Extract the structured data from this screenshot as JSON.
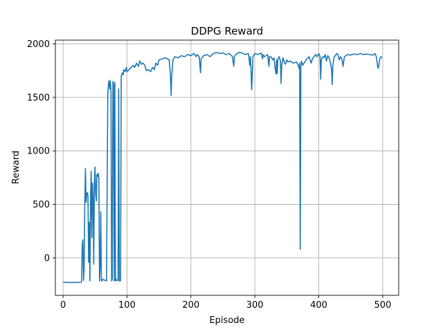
{
  "chart_data": {
    "type": "line",
    "title": "DDPG Reward",
    "xlabel": "Episode",
    "ylabel": "Reward",
    "xlim": [
      -12,
      525
    ],
    "ylim": [
      -350,
      2035
    ],
    "xticks": [
      0,
      100,
      200,
      300,
      400,
      500
    ],
    "yticks": [
      0,
      500,
      1000,
      1500,
      2000
    ],
    "grid": true,
    "series": [
      {
        "name": "Reward",
        "color": "#1f77b4",
        "points": [
          [
            0,
            -228
          ],
          [
            10,
            -230
          ],
          [
            20,
            -230
          ],
          [
            28,
            -228
          ],
          [
            29,
            -220
          ],
          [
            30,
            120
          ],
          [
            31,
            170
          ],
          [
            32,
            -210
          ],
          [
            33,
            -100
          ],
          [
            34,
            500
          ],
          [
            35,
            835
          ],
          [
            36,
            520
          ],
          [
            37,
            600
          ],
          [
            38,
            610
          ],
          [
            39,
            580
          ],
          [
            40,
            -40
          ],
          [
            41,
            330
          ],
          [
            42,
            -215
          ],
          [
            43,
            520
          ],
          [
            44,
            810
          ],
          [
            45,
            190
          ],
          [
            46,
            700
          ],
          [
            47,
            540
          ],
          [
            48,
            -60
          ],
          [
            49,
            700
          ],
          [
            50,
            850
          ],
          [
            51,
            600
          ],
          [
            52,
            530
          ],
          [
            53,
            780
          ],
          [
            54,
            760
          ],
          [
            55,
            790
          ],
          [
            56,
            750
          ],
          [
            57,
            -215
          ],
          [
            58,
            -100
          ],
          [
            59,
            430
          ],
          [
            60,
            -215
          ],
          [
            61,
            -215
          ],
          [
            62,
            -200
          ],
          [
            64,
            -205
          ],
          [
            66,
            -210
          ],
          [
            68,
            -215
          ],
          [
            70,
            1530
          ],
          [
            71,
            1620
          ],
          [
            72,
            1660
          ],
          [
            73,
            1580
          ],
          [
            74,
            1650
          ],
          [
            75,
            1540
          ],
          [
            76,
            -215
          ],
          [
            77,
            -200
          ],
          [
            78,
            1650
          ],
          [
            79,
            1620
          ],
          [
            80,
            -215
          ],
          [
            81,
            1640
          ],
          [
            82,
            -215
          ],
          [
            83,
            -200
          ],
          [
            84,
            -210
          ],
          [
            86,
            -210
          ],
          [
            87,
            1580
          ],
          [
            88,
            -215
          ],
          [
            89,
            -215
          ],
          [
            90,
            -210
          ],
          [
            91,
            1700
          ],
          [
            92,
            1720
          ],
          [
            93,
            1730
          ],
          [
            94,
            1710
          ],
          [
            95,
            1760
          ],
          [
            97,
            1740
          ],
          [
            99,
            1780
          ],
          [
            100,
            1740
          ],
          [
            105,
            1770
          ],
          [
            110,
            1800
          ],
          [
            112,
            1780
          ],
          [
            115,
            1820
          ],
          [
            118,
            1790
          ],
          [
            120,
            1840
          ],
          [
            123,
            1810
          ],
          [
            125,
            1820
          ],
          [
            128,
            1800
          ],
          [
            130,
            1750
          ],
          [
            133,
            1760
          ],
          [
            137,
            1740
          ],
          [
            140,
            1780
          ],
          [
            143,
            1760
          ],
          [
            145,
            1820
          ],
          [
            148,
            1800
          ],
          [
            150,
            1850
          ],
          [
            155,
            1860
          ],
          [
            160,
            1870
          ],
          [
            163,
            1860
          ],
          [
            166,
            1850
          ],
          [
            168,
            1700
          ],
          [
            169,
            1520
          ],
          [
            170,
            1700
          ],
          [
            172,
            1850
          ],
          [
            175,
            1880
          ],
          [
            180,
            1870
          ],
          [
            185,
            1890
          ],
          [
            190,
            1880
          ],
          [
            195,
            1900
          ],
          [
            200,
            1890
          ],
          [
            205,
            1910
          ],
          [
            208,
            1880
          ],
          [
            210,
            1900
          ],
          [
            213,
            1880
          ],
          [
            215,
            1730
          ],
          [
            216,
            1860
          ],
          [
            220,
            1890
          ],
          [
            225,
            1900
          ],
          [
            230,
            1880
          ],
          [
            235,
            1910
          ],
          [
            240,
            1920
          ],
          [
            245,
            1910
          ],
          [
            250,
            1915
          ],
          [
            255,
            1900
          ],
          [
            260,
            1910
          ],
          [
            265,
            1880
          ],
          [
            267,
            1790
          ],
          [
            268,
            1880
          ],
          [
            270,
            1900
          ],
          [
            275,
            1920
          ],
          [
            280,
            1915
          ],
          [
            285,
            1900
          ],
          [
            290,
            1910
          ],
          [
            292,
            1800
          ],
          [
            293,
            1880
          ],
          [
            294,
            1770
          ],
          [
            295,
            1570
          ],
          [
            296,
            1700
          ],
          [
            297,
            1880
          ],
          [
            300,
            1910
          ],
          [
            305,
            1900
          ],
          [
            310,
            1915
          ],
          [
            312,
            1860
          ],
          [
            313,
            1900
          ],
          [
            315,
            1880
          ],
          [
            320,
            1900
          ],
          [
            322,
            1790
          ],
          [
            323,
            1880
          ],
          [
            325,
            1880
          ],
          [
            328,
            1850
          ],
          [
            330,
            1870
          ],
          [
            332,
            1760
          ],
          [
            333,
            1720
          ],
          [
            334,
            1850
          ],
          [
            335,
            1720
          ],
          [
            336,
            1860
          ],
          [
            338,
            1880
          ],
          [
            340,
            1840
          ],
          [
            341,
            1630
          ],
          [
            342,
            1800
          ],
          [
            344,
            1870
          ],
          [
            346,
            1830
          ],
          [
            348,
            1810
          ],
          [
            350,
            1850
          ],
          [
            352,
            1830
          ],
          [
            355,
            1840
          ],
          [
            360,
            1820
          ],
          [
            365,
            1830
          ],
          [
            368,
            1800
          ],
          [
            369,
            1770
          ],
          [
            370,
            1820
          ],
          [
            371,
            80
          ],
          [
            372,
            1790
          ],
          [
            373,
            1840
          ],
          [
            375,
            1800
          ],
          [
            378,
            1830
          ],
          [
            380,
            1850
          ],
          [
            383,
            1870
          ],
          [
            385,
            1880
          ],
          [
            388,
            1820
          ],
          [
            390,
            1860
          ],
          [
            395,
            1900
          ],
          [
            397,
            1880
          ],
          [
            400,
            1910
          ],
          [
            402,
            1880
          ],
          [
            403,
            1670
          ],
          [
            404,
            1850
          ],
          [
            406,
            1880
          ],
          [
            408,
            1870
          ],
          [
            410,
            1900
          ],
          [
            412,
            1840
          ],
          [
            414,
            1890
          ],
          [
            416,
            1870
          ],
          [
            418,
            1830
          ],
          [
            420,
            1760
          ],
          [
            421,
            1620
          ],
          [
            422,
            1800
          ],
          [
            424,
            1880
          ],
          [
            426,
            1890
          ],
          [
            428,
            1910
          ],
          [
            430,
            1900
          ],
          [
            432,
            1850
          ],
          [
            434,
            1880
          ],
          [
            436,
            1860
          ],
          [
            438,
            1790
          ],
          [
            440,
            1880
          ],
          [
            445,
            1900
          ],
          [
            450,
            1895
          ],
          [
            455,
            1905
          ],
          [
            460,
            1900
          ],
          [
            465,
            1910
          ],
          [
            470,
            1900
          ],
          [
            475,
            1905
          ],
          [
            480,
            1900
          ],
          [
            485,
            1895
          ],
          [
            488,
            1910
          ],
          [
            490,
            1880
          ],
          [
            492,
            1790
          ],
          [
            493,
            1770
          ],
          [
            494,
            1800
          ],
          [
            495,
            1850
          ],
          [
            497,
            1880
          ],
          [
            499,
            1870
          ]
        ]
      }
    ]
  }
}
